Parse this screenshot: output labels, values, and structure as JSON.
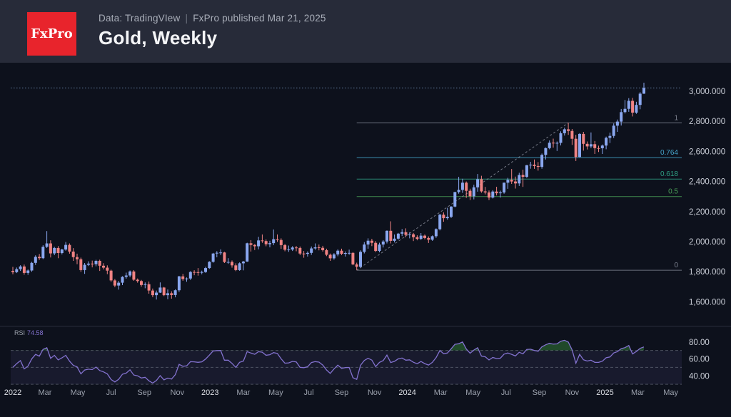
{
  "header": {
    "logo_text": "FxPro",
    "logo_color": "#e8242c",
    "meta": "Data: TradingVIew",
    "separator": "|",
    "published": "FxPro published Mar 21, 2025",
    "title": "Gold, Weekly"
  },
  "chart_data": {
    "type": "candlestick",
    "title": "Gold, Weekly",
    "timeframe": "Weekly",
    "x_range": [
      "Jan 2022",
      "May 2025"
    ],
    "colors": {
      "up": "#8aa7ef",
      "down": "#f08383",
      "current_price_line": "#6b87b0",
      "trend_line": "#999caa",
      "price_label": "#ccd0d9",
      "month_label": "#9aa0ac",
      "year_label": "#dde0e6",
      "pane_separator": "#2b2f3d"
    },
    "y_axis": {
      "range": [
        1550,
        3100
      ],
      "ticks": [
        {
          "label": "3,000.000",
          "value": 3000
        },
        {
          "label": "2,800.000",
          "value": 2800
        },
        {
          "label": "2,600.000",
          "value": 2600
        },
        {
          "label": "2,400.000",
          "value": 2400
        },
        {
          "label": "2,200.000",
          "value": 2200
        },
        {
          "label": "2,000.000",
          "value": 2000
        },
        {
          "label": "1,800.000",
          "value": 1800
        },
        {
          "label": "1,600.000",
          "value": 1600
        }
      ]
    },
    "fib": {
      "start_week": 91,
      "levels": [
        {
          "label": "1",
          "value": 2790,
          "color": "#7d8290"
        },
        {
          "label": "0.764",
          "value": 2559,
          "color": "#45a3c9"
        },
        {
          "label": "0.618",
          "value": 2416,
          "color": "#2fa084"
        },
        {
          "label": "0.5",
          "value": 2300,
          "color": "#4a9e57"
        },
        {
          "label": "0",
          "value": 1810,
          "color": "#7d8290"
        }
      ]
    },
    "trend_line": {
      "from_week": 91,
      "from_price": 1810,
      "to_week": 147,
      "to_price": 2790
    },
    "time_ticks": [
      {
        "label": "2022",
        "week": 0,
        "year": true
      },
      {
        "label": "Mar",
        "week": 8.5,
        "year": false
      },
      {
        "label": "May",
        "week": 17.2,
        "year": false
      },
      {
        "label": "Jul",
        "week": 26,
        "year": false
      },
      {
        "label": "Sep",
        "week": 34.8,
        "year": false
      },
      {
        "label": "Nov",
        "week": 43.5,
        "year": false
      },
      {
        "label": "2023",
        "week": 52.2,
        "year": true
      },
      {
        "label": "Mar",
        "week": 61,
        "year": false
      },
      {
        "label": "May",
        "week": 69.6,
        "year": false
      },
      {
        "label": "Jul",
        "week": 78.3,
        "year": false
      },
      {
        "label": "Sep",
        "week": 87,
        "year": false
      },
      {
        "label": "Nov",
        "week": 95.7,
        "year": false
      },
      {
        "label": "2024",
        "week": 104.4,
        "year": true
      },
      {
        "label": "Mar",
        "week": 113.2,
        "year": false
      },
      {
        "label": "May",
        "week": 121.8,
        "year": false
      },
      {
        "label": "Jul",
        "week": 130.5,
        "year": false
      },
      {
        "label": "Sep",
        "week": 139.3,
        "year": false
      },
      {
        "label": "Nov",
        "week": 148,
        "year": false
      },
      {
        "label": "2025",
        "week": 156.7,
        "year": true
      },
      {
        "label": "Mar",
        "week": 165.4,
        "year": false
      },
      {
        "label": "May",
        "week": 174.1,
        "year": false
      }
    ],
    "rsi": {
      "label": "RSI",
      "value": "74.58",
      "period": 14,
      "levels": [
        70,
        50,
        30
      ],
      "band": [
        30,
        70
      ],
      "ticks": [
        {
          "label": "80.00",
          "value": 80
        },
        {
          "label": "60.00",
          "value": 60
        },
        {
          "label": "40.00",
          "value": 40
        }
      ],
      "line_color": "#8372cf",
      "band_fill": "rgba(126,107,201,0.10)",
      "overbought_fill": "rgba(56,142,60,0.45)",
      "level_line_color": "rgba(210,215,228,0.30)"
    },
    "candles": [
      [
        1805,
        1832,
        1783,
        1797
      ],
      [
        1797,
        1828,
        1791,
        1817
      ],
      [
        1817,
        1843,
        1805,
        1835
      ],
      [
        1835,
        1848,
        1780,
        1792
      ],
      [
        1792,
        1815,
        1779,
        1808
      ],
      [
        1808,
        1866,
        1800,
        1859
      ],
      [
        1859,
        1909,
        1845,
        1899
      ],
      [
        1899,
        1918,
        1878,
        1890
      ],
      [
        1890,
        1976,
        1884,
        1966
      ],
      [
        1966,
        2070,
        1958,
        1988
      ],
      [
        1988,
        2009,
        1895,
        1922
      ],
      [
        1922,
        1966,
        1910,
        1958
      ],
      [
        1958,
        1970,
        1890,
        1924
      ],
      [
        1924,
        1952,
        1915,
        1948
      ],
      [
        1948,
        1998,
        1940,
        1978
      ],
      [
        1978,
        1988,
        1920,
        1934
      ],
      [
        1934,
        1957,
        1872,
        1897
      ],
      [
        1897,
        1920,
        1850,
        1883
      ],
      [
        1883,
        1894,
        1799,
        1811
      ],
      [
        1811,
        1858,
        1786,
        1846
      ],
      [
        1846,
        1869,
        1838,
        1854
      ],
      [
        1854,
        1874,
        1829,
        1850
      ],
      [
        1850,
        1879,
        1836,
        1872
      ],
      [
        1872,
        1880,
        1805,
        1840
      ],
      [
        1840,
        1857,
        1815,
        1827
      ],
      [
        1827,
        1842,
        1784,
        1807
      ],
      [
        1807,
        1814,
        1732,
        1742
      ],
      [
        1742,
        1752,
        1697,
        1708
      ],
      [
        1708,
        1739,
        1681,
        1727
      ],
      [
        1727,
        1770,
        1711,
        1766
      ],
      [
        1766,
        1794,
        1754,
        1775
      ],
      [
        1775,
        1808,
        1763,
        1802
      ],
      [
        1802,
        1811,
        1740,
        1747
      ],
      [
        1747,
        1755,
        1727,
        1738
      ],
      [
        1738,
        1745,
        1701,
        1712
      ],
      [
        1712,
        1729,
        1690,
        1717
      ],
      [
        1717,
        1735,
        1654,
        1675
      ],
      [
        1675,
        1688,
        1631,
        1644
      ],
      [
        1644,
        1675,
        1615,
        1661
      ],
      [
        1661,
        1729,
        1659,
        1695
      ],
      [
        1695,
        1699,
        1638,
        1644
      ],
      [
        1644,
        1682,
        1617,
        1657
      ],
      [
        1657,
        1670,
        1621,
        1645
      ],
      [
        1645,
        1683,
        1630,
        1677
      ],
      [
        1677,
        1772,
        1666,
        1769
      ],
      [
        1769,
        1786,
        1740,
        1751
      ],
      [
        1751,
        1762,
        1733,
        1755
      ],
      [
        1755,
        1804,
        1745,
        1798
      ],
      [
        1798,
        1810,
        1777,
        1797
      ],
      [
        1797,
        1824,
        1774,
        1793
      ],
      [
        1793,
        1807,
        1783,
        1798
      ],
      [
        1798,
        1833,
        1793,
        1824
      ],
      [
        1824,
        1870,
        1819,
        1866
      ],
      [
        1866,
        1925,
        1860,
        1921
      ],
      [
        1921,
        1937,
        1896,
        1926
      ],
      [
        1926,
        1949,
        1911,
        1928
      ],
      [
        1928,
        1932,
        1858,
        1865
      ],
      [
        1865,
        1890,
        1852,
        1865
      ],
      [
        1865,
        1875,
        1827,
        1842
      ],
      [
        1842,
        1856,
        1804,
        1811
      ],
      [
        1811,
        1862,
        1806,
        1856
      ],
      [
        1856,
        1872,
        1809,
        1868
      ],
      [
        1868,
        1993,
        1866,
        1989
      ],
      [
        1989,
        2010,
        1934,
        1978
      ],
      [
        1978,
        1984,
        1944,
        1969
      ],
      [
        1969,
        2032,
        1949,
        2008
      ],
      [
        2008,
        2048,
        1992,
        2004
      ],
      [
        2004,
        2015,
        1969,
        1983
      ],
      [
        1983,
        2006,
        1962,
        1990
      ],
      [
        1990,
        2081,
        1977,
        2016
      ],
      [
        2016,
        2048,
        1999,
        2011
      ],
      [
        2011,
        2022,
        1952,
        1977
      ],
      [
        1977,
        1985,
        1936,
        1946
      ],
      [
        1946,
        1974,
        1932,
        1948
      ],
      [
        1948,
        1970,
        1938,
        1961
      ],
      [
        1961,
        1971,
        1936,
        1958
      ],
      [
        1958,
        1968,
        1910,
        1921
      ],
      [
        1921,
        1938,
        1893,
        1919
      ],
      [
        1919,
        1935,
        1901,
        1925
      ],
      [
        1925,
        1968,
        1912,
        1955
      ],
      [
        1955,
        1988,
        1946,
        1962
      ],
      [
        1962,
        1981,
        1942,
        1959
      ],
      [
        1959,
        1972,
        1934,
        1943
      ],
      [
        1943,
        1953,
        1904,
        1913
      ],
      [
        1913,
        1921,
        1872,
        1889
      ],
      [
        1889,
        1923,
        1880,
        1915
      ],
      [
        1915,
        1949,
        1903,
        1940
      ],
      [
        1940,
        1953,
        1911,
        1919
      ],
      [
        1919,
        1935,
        1901,
        1924
      ],
      [
        1924,
        1947,
        1913,
        1925
      ],
      [
        1925,
        1930,
        1843,
        1849
      ],
      [
        1849,
        1860,
        1810,
        1833
      ],
      [
        1833,
        1942,
        1823,
        1932
      ],
      [
        1932,
        1997,
        1922,
        1981
      ],
      [
        1981,
        2022,
        1953,
        2006
      ],
      [
        2006,
        2019,
        1970,
        1992
      ],
      [
        1992,
        2004,
        1931,
        1938
      ],
      [
        1938,
        1993,
        1929,
        1981
      ],
      [
        1981,
        2010,
        1961,
        2001
      ],
      [
        2001,
        2075,
        1988,
        2072
      ],
      [
        2072,
        2135,
        1988,
        2005
      ],
      [
        2005,
        2048,
        1995,
        2020
      ],
      [
        2020,
        2058,
        2013,
        2053
      ],
      [
        2053,
        2084,
        2037,
        2063
      ],
      [
        2063,
        2088,
        2030,
        2045
      ],
      [
        2045,
        2062,
        2022,
        2049
      ],
      [
        2049,
        2058,
        2004,
        2030
      ],
      [
        2030,
        2042,
        2009,
        2018
      ],
      [
        2018,
        2057,
        2012,
        2040
      ],
      [
        2040,
        2048,
        2015,
        2024
      ],
      [
        2024,
        2035,
        1991,
        2013
      ],
      [
        2013,
        2041,
        2005,
        2036
      ],
      [
        2036,
        2088,
        2025,
        2083
      ],
      [
        2083,
        2185,
        2075,
        2179
      ],
      [
        2179,
        2195,
        2132,
        2156
      ],
      [
        2156,
        2225,
        2146,
        2165
      ],
      [
        2165,
        2236,
        2157,
        2233
      ],
      [
        2233,
        2331,
        2228,
        2330
      ],
      [
        2330,
        2431,
        2319,
        2344
      ],
      [
        2344,
        2418,
        2324,
        2392
      ],
      [
        2392,
        2400,
        2291,
        2338
      ],
      [
        2338,
        2352,
        2277,
        2302
      ],
      [
        2302,
        2378,
        2281,
        2361
      ],
      [
        2361,
        2450,
        2332,
        2415
      ],
      [
        2415,
        2438,
        2325,
        2334
      ],
      [
        2334,
        2364,
        2314,
        2327
      ],
      [
        2327,
        2340,
        2277,
        2293
      ],
      [
        2293,
        2342,
        2287,
        2333
      ],
      [
        2333,
        2365,
        2307,
        2322
      ],
      [
        2322,
        2339,
        2293,
        2327
      ],
      [
        2327,
        2393,
        2319,
        2392
      ],
      [
        2392,
        2424,
        2351,
        2411
      ],
      [
        2411,
        2483,
        2384,
        2400
      ],
      [
        2400,
        2432,
        2353,
        2387
      ],
      [
        2387,
        2458,
        2370,
        2443
      ],
      [
        2443,
        2478,
        2364,
        2431
      ],
      [
        2431,
        2510,
        2424,
        2508
      ],
      [
        2508,
        2531,
        2485,
        2512
      ],
      [
        2512,
        2546,
        2484,
        2503
      ],
      [
        2503,
        2529,
        2472,
        2497
      ],
      [
        2497,
        2586,
        2485,
        2577
      ],
      [
        2577,
        2626,
        2546,
        2622
      ],
      [
        2622,
        2673,
        2614,
        2658
      ],
      [
        2658,
        2685,
        2625,
        2653
      ],
      [
        2653,
        2666,
        2603,
        2657
      ],
      [
        2657,
        2733,
        2640,
        2721
      ],
      [
        2721,
        2758,
        2705,
        2747
      ],
      [
        2747,
        2790,
        2710,
        2736
      ],
      [
        2736,
        2749,
        2643,
        2684
      ],
      [
        2684,
        2710,
        2536,
        2563
      ],
      [
        2563,
        2721,
        2561,
        2716
      ],
      [
        2716,
        2730,
        2605,
        2650
      ],
      [
        2650,
        2666,
        2613,
        2633
      ],
      [
        2633,
        2726,
        2622,
        2648
      ],
      [
        2648,
        2669,
        2583,
        2622
      ],
      [
        2622,
        2638,
        2596,
        2621
      ],
      [
        2621,
        2646,
        2583,
        2639
      ],
      [
        2639,
        2698,
        2614,
        2690
      ],
      [
        2690,
        2725,
        2656,
        2703
      ],
      [
        2703,
        2786,
        2689,
        2771
      ],
      [
        2771,
        2812,
        2730,
        2798
      ],
      [
        2798,
        2882,
        2772,
        2861
      ],
      [
        2861,
        2942,
        2852,
        2883
      ],
      [
        2883,
        2954,
        2863,
        2936
      ],
      [
        2936,
        2956,
        2832,
        2858
      ],
      [
        2858,
        2930,
        2850,
        2909
      ],
      [
        2909,
        2994,
        2880,
        2984
      ],
      [
        2984,
        3057,
        2982,
        3022
      ]
    ]
  }
}
